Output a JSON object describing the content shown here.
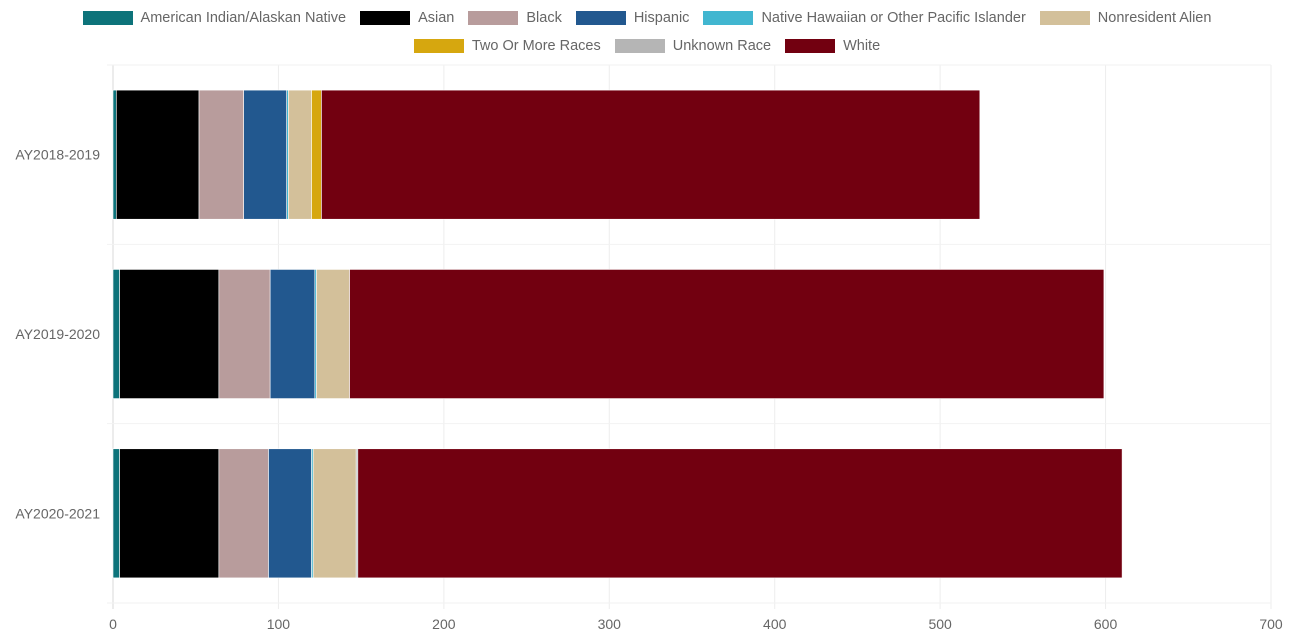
{
  "chart_data": {
    "type": "bar",
    "orientation": "horizontal",
    "stacked": true,
    "categories": [
      "AY2018-2019",
      "AY2019-2020",
      "AY2020-2021"
    ],
    "series": [
      {
        "name": "American Indian/Alaskan Native",
        "color": "#0d737a",
        "values": [
          2,
          4,
          4
        ]
      },
      {
        "name": "Asian",
        "color": "#000000",
        "values": [
          50,
          60,
          60
        ]
      },
      {
        "name": "Black",
        "color": "#b89c9c",
        "values": [
          27,
          31,
          30
        ]
      },
      {
        "name": "Hispanic",
        "color": "#22588f",
        "values": [
          26,
          27,
          26
        ]
      },
      {
        "name": "Native Hawaiian or Other Pacific Islander",
        "color": "#41b6d0",
        "values": [
          1,
          1,
          1
        ]
      },
      {
        "name": "Nonresident Alien",
        "color": "#d3c09a",
        "values": [
          14,
          20,
          26
        ]
      },
      {
        "name": "Two Or More Races",
        "color": "#d6a70f",
        "values": [
          6,
          0,
          0
        ]
      },
      {
        "name": "Unknown Race",
        "color": "#b5b5b5",
        "values": [
          0,
          0,
          1
        ]
      },
      {
        "name": "White",
        "color": "#720010",
        "values": [
          398,
          456,
          462
        ]
      }
    ],
    "xlim": [
      0,
      700
    ],
    "xticks": [
      "0",
      "100",
      "200",
      "300",
      "400",
      "500",
      "600",
      "700"
    ],
    "grid": true,
    "legend_position": "top"
  }
}
